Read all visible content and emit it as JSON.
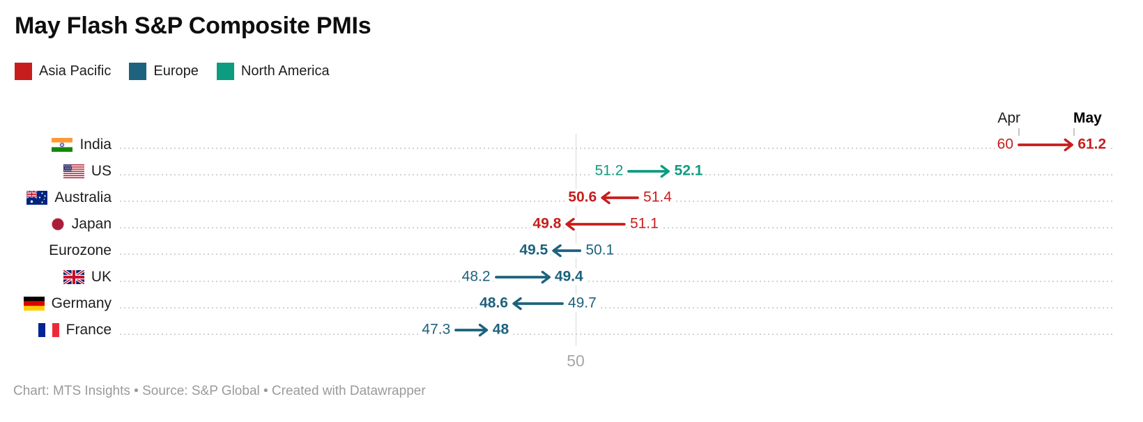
{
  "header": {
    "title": "May Flash S&P Composite PMIs"
  },
  "legend": {
    "items": [
      {
        "label": "Asia Pacific",
        "color": "#c71e1d"
      },
      {
        "label": "Europe",
        "color": "#1d627e"
      },
      {
        "label": "North America",
        "color": "#0d9c80"
      }
    ]
  },
  "chart_data": {
    "type": "arrow",
    "title": "May Flash S&P Composite PMIs",
    "columns": {
      "apr": "Apr",
      "may": "May"
    },
    "x_axis": {
      "tick_value": 50,
      "tick_label": "50"
    },
    "legend_position": "top-left",
    "grid": "dotted-row-lines",
    "rows": [
      {
        "label": "India",
        "flag": "india",
        "region": "Asia Pacific",
        "apr": 60,
        "may": 61.2
      },
      {
        "label": "US",
        "flag": "us",
        "region": "North America",
        "apr": 51.2,
        "may": 52.1
      },
      {
        "label": "Australia",
        "flag": "australia",
        "region": "Asia Pacific",
        "apr": 51.4,
        "may": 50.6
      },
      {
        "label": "Japan",
        "flag": "japan",
        "region": "Asia Pacific",
        "apr": 51.1,
        "may": 49.8
      },
      {
        "label": "Eurozone",
        "flag": null,
        "region": "Europe",
        "apr": 50.1,
        "may": 49.5
      },
      {
        "label": "UK",
        "flag": "uk",
        "region": "Europe",
        "apr": 48.2,
        "may": 49.4
      },
      {
        "label": "Germany",
        "flag": "germany",
        "region": "Europe",
        "apr": 49.7,
        "may": 48.6
      },
      {
        "label": "France",
        "flag": "france",
        "region": "Europe",
        "apr": 47.3,
        "may": 48
      }
    ]
  },
  "footer": {
    "text": "Chart: MTS Insights • Source: S&P Global • Created with Datawrapper"
  }
}
